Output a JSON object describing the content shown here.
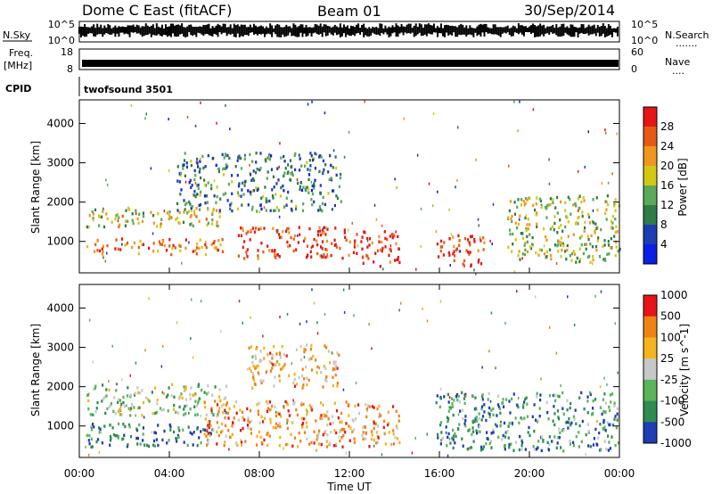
{
  "header": {
    "title": "Dome C East (fitACF)",
    "beam": "Beam 01",
    "date": "30/Sep/2014"
  },
  "nsky_panel": {
    "left_label": "N.Sky",
    "left_ticks": [
      "10^5",
      "10^0"
    ],
    "right_ticks": [
      "10^5",
      "10^0"
    ],
    "right_label": "N.Search",
    "right_dots": "......."
  },
  "freq_panel": {
    "left_label_1": "Freq.",
    "left_label_2": "[MHz]",
    "left_ticks": [
      "18",
      "8"
    ],
    "right_ticks": [
      "60",
      "0"
    ],
    "right_label": "Nave",
    "right_dots": "...."
  },
  "cpid_panel": {
    "label": "CPID",
    "program": "twofsound 3501"
  },
  "chart_data": [
    {
      "type": "heatmap",
      "quantity": "Power",
      "ylabel": "Slant Range [km]",
      "yticks": [
        1000,
        2000,
        3000,
        4000
      ],
      "ylim": [
        200,
        4600
      ],
      "colorbar_label": "Power [dB]",
      "colorbar_ticks": [
        4,
        8,
        12,
        16,
        20,
        24,
        28
      ],
      "colorbar_colors": [
        "#0a1ee6",
        "#1e3cb4",
        "#2e7c46",
        "#5aaa5a",
        "#d2c814",
        "#f0961e",
        "#e65a14",
        "#e61414"
      ],
      "bands": [
        {
          "x": [
            0.3,
            6.6
          ],
          "y": [
            1400,
            1900
          ],
          "level": 0.55
        },
        {
          "x": [
            0.3,
            6.5
          ],
          "y": [
            700,
            1100
          ],
          "level": 0.78
        },
        {
          "x": [
            4.3,
            11.6
          ],
          "y": [
            1800,
            3300
          ],
          "level": 0.32
        },
        {
          "x": [
            7.0,
            12.0
          ],
          "y": [
            600,
            1400
          ],
          "level": 0.88
        },
        {
          "x": [
            12.0,
            14.2
          ],
          "y": [
            400,
            1300
          ],
          "level": 0.93
        },
        {
          "x": [
            15.8,
            18.0
          ],
          "y": [
            400,
            1200
          ],
          "level": 0.92
        },
        {
          "x": [
            19.0,
            24.0
          ],
          "y": [
            500,
            2200
          ],
          "level": 0.48
        }
      ]
    },
    {
      "type": "heatmap",
      "quantity": "Velocity",
      "ylabel": "Slant Range [km]",
      "yticks": [
        1000,
        2000,
        3000,
        4000
      ],
      "ylim": [
        200,
        4600
      ],
      "colorbar_label": "Velocity [m s^-1]",
      "colorbar_ticks": [
        1000,
        500,
        100,
        25,
        -25,
        -100,
        -500,
        -1000
      ],
      "colorbar_colors": [
        "#1e3cb4",
        "#2e8c50",
        "#5ab45a",
        "#c8c8c8",
        "#f5b41e",
        "#f08214",
        "#e61414"
      ],
      "bands": [
        {
          "x": [
            0.3,
            6.5
          ],
          "y": [
            1300,
            2100
          ],
          "level": 0.42
        },
        {
          "x": [
            0.3,
            6.0
          ],
          "y": [
            500,
            1100
          ],
          "level": 0.2
        },
        {
          "x": [
            5.5,
            12.0
          ],
          "y": [
            500,
            1700
          ],
          "level": 0.72
        },
        {
          "x": [
            7.5,
            11.5
          ],
          "y": [
            2000,
            3100
          ],
          "level": 0.65
        },
        {
          "x": [
            12.0,
            14.2
          ],
          "y": [
            500,
            1600
          ],
          "level": 0.7
        },
        {
          "x": [
            15.8,
            24.0
          ],
          "y": [
            400,
            1900
          ],
          "level": 0.25
        }
      ]
    }
  ],
  "x_axis": {
    "ticks": [
      "00:00",
      "04:00",
      "08:00",
      "12:00",
      "16:00",
      "20:00",
      "00:00"
    ],
    "label": "Time UT",
    "range_hours": [
      0,
      24
    ]
  }
}
